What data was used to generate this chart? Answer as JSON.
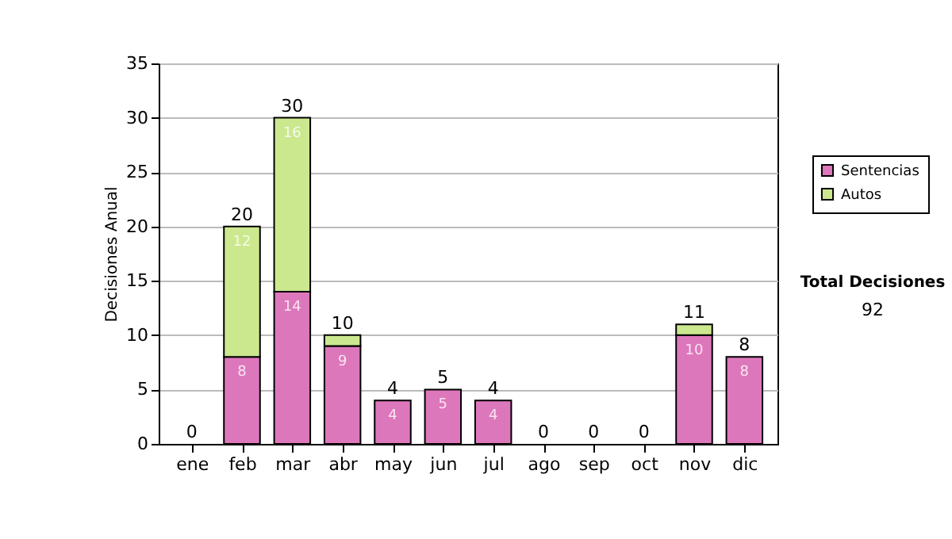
{
  "chart_data": {
    "type": "bar",
    "stacked": true,
    "ylabel": "Decisiones Anual",
    "categories": [
      "ene",
      "feb",
      "mar",
      "abr",
      "may",
      "jun",
      "jul",
      "ago",
      "sep",
      "oct",
      "nov",
      "dic"
    ],
    "series": [
      {
        "name": "Sentencias",
        "color": "#dd77bb",
        "values": [
          0,
          8,
          14,
          9,
          4,
          5,
          4,
          0,
          0,
          0,
          10,
          8
        ],
        "value_labels": [
          null,
          "8",
          "14",
          "9",
          "4",
          "5",
          "4",
          null,
          null,
          null,
          "10",
          "8"
        ]
      },
      {
        "name": "Autos",
        "color": "#cce88f",
        "values": [
          0,
          12,
          16,
          1,
          0,
          0,
          0,
          0,
          0,
          0,
          1,
          0
        ],
        "value_labels": [
          null,
          "12",
          "16",
          null,
          null,
          null,
          null,
          null,
          null,
          null,
          null,
          null
        ]
      }
    ],
    "totals": [
      "0",
      "20",
      "30",
      "10",
      "4",
      "5",
      "4",
      "0",
      "0",
      "0",
      "11",
      "8"
    ],
    "ylim": [
      0,
      35
    ],
    "yticks": [
      0,
      5,
      10,
      15,
      20,
      25,
      30,
      35
    ],
    "grid": "y",
    "legend": "right",
    "annotations": [
      "Total Decisiones",
      "92"
    ]
  }
}
